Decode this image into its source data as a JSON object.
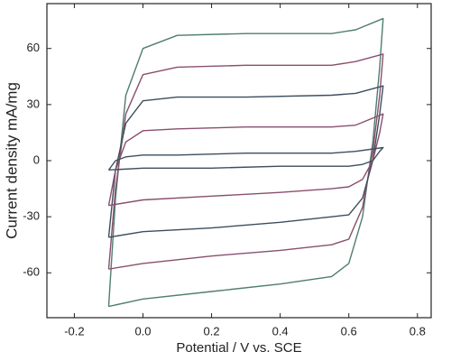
{
  "chart_data": {
    "type": "line",
    "x_label": "Potential / V vs. SCE",
    "y_label": "Current density    mA/mg",
    "xlim": [
      -0.28,
      0.84
    ],
    "ylim": [
      -84,
      84
    ],
    "xticks": [
      -0.2,
      {
        "value": 0,
        "label": "0.0"
      },
      0.2,
      0.4,
      0.6,
      0.8
    ],
    "yticks": [
      -60,
      -30,
      0,
      30,
      60
    ],
    "series": [
      {
        "color": "#4f7d6e",
        "x": [
          -0.1,
          -0.08,
          -0.05,
          0.0,
          0.1,
          0.3,
          0.55,
          0.62,
          0.7,
          0.69,
          0.67,
          0.64,
          0.6,
          0.55,
          0.4,
          0.2,
          0.0,
          -0.1
        ],
        "values": [
          -78,
          -20,
          35,
          60,
          67,
          68,
          68,
          70,
          76,
          50,
          10,
          -30,
          -55,
          -62,
          -66,
          -70,
          -74,
          -78
        ]
      },
      {
        "color": "#8a4f6e",
        "x": [
          -0.1,
          -0.08,
          -0.05,
          0.0,
          0.1,
          0.3,
          0.55,
          0.62,
          0.7,
          0.69,
          0.67,
          0.64,
          0.6,
          0.55,
          0.4,
          0.2,
          0.0,
          -0.1
        ],
        "values": [
          -58,
          -15,
          25,
          46,
          50,
          51,
          51,
          53,
          57,
          35,
          5,
          -25,
          -42,
          -45,
          -48,
          -51,
          -55,
          -58
        ]
      },
      {
        "color": "#3d4e5e",
        "x": [
          -0.1,
          -0.08,
          -0.05,
          0.0,
          0.1,
          0.3,
          0.55,
          0.62,
          0.7,
          0.69,
          0.67,
          0.64,
          0.6,
          0.55,
          0.4,
          0.2,
          0.0,
          -0.1
        ],
        "values": [
          -41,
          -5,
          20,
          32,
          34,
          34,
          35,
          36,
          40,
          25,
          0,
          -20,
          -29,
          -30,
          -33,
          -36,
          -38,
          -41
        ]
      },
      {
        "color": "#8a4f6e",
        "x": [
          -0.1,
          -0.08,
          -0.05,
          0.0,
          0.1,
          0.3,
          0.55,
          0.62,
          0.7,
          0.69,
          0.67,
          0.64,
          0.6,
          0.55,
          0.4,
          0.2,
          0.0,
          -0.1
        ],
        "values": [
          -24,
          -5,
          10,
          16,
          17,
          18,
          18,
          19,
          25,
          15,
          0,
          -10,
          -14,
          -15,
          -17,
          -19,
          -21,
          -24
        ]
      },
      {
        "color": "#3d4e5e",
        "x": [
          -0.1,
          -0.08,
          -0.05,
          0.0,
          0.1,
          0.3,
          0.55,
          0.62,
          0.7,
          0.69,
          0.67,
          0.64,
          0.6,
          0.55,
          0.4,
          0.2,
          0.0,
          -0.1
        ],
        "values": [
          -5,
          0,
          2,
          3,
          3,
          4,
          4,
          5,
          7,
          5,
          0,
          -2,
          -3,
          -3,
          -3,
          -4,
          -4,
          -5
        ]
      }
    ]
  }
}
